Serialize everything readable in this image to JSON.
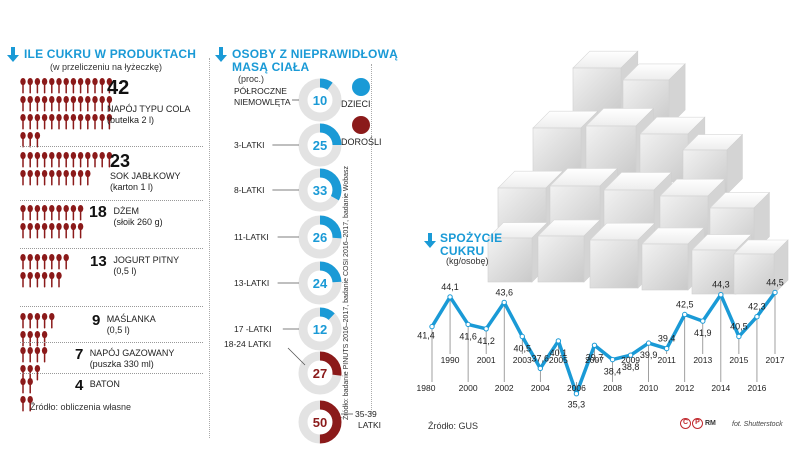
{
  "left": {
    "title": "ILE CUKRU W PRODUKTACH",
    "subtitle": "(w przeliczeniu na łyżeczkę)",
    "items": [
      {
        "value": "42",
        "label1": "NAPÓJ TYPU COLA",
        "label2": "(butelka 2 l)",
        "count": 42
      },
      {
        "value": "23",
        "label1": "SOK JABŁKOWY",
        "label2": "(karton 1 l)",
        "count": 23
      },
      {
        "value": "18",
        "label1": "DŻEM",
        "label2": "(słoik 260 g)",
        "count": 18
      },
      {
        "value": "13",
        "label1": "JOGURT PITNY",
        "label2": "(0,5 l)",
        "count": 13
      },
      {
        "value": "9",
        "label1": "MAŚLANKA",
        "label2": "(0,5 l)",
        "count": 9
      },
      {
        "value": "7",
        "label1": "NAPÓJ GAZOWANY",
        "label2": "(puszka 330 ml)",
        "count": 7
      },
      {
        "value": "4",
        "label1": "BATON",
        "label2": "",
        "count": 4
      }
    ],
    "source": "Źródło: obliczenia własne",
    "icon": "teaspoon-icon",
    "icon_color": "#8b1a1a"
  },
  "middle": {
    "title_line1": "OSOBY Z NIEPRAWIDŁOWĄ",
    "title_line2": "MASĄ CIAŁA",
    "subtitle": "(proc.)",
    "legend": [
      {
        "label": "DZIECI",
        "color": "#1a9ad6"
      },
      {
        "label": "DOROŚLI",
        "color": "#8b1a1a"
      }
    ],
    "rows": [
      {
        "label": "PÓŁROCZNE NIEMOWLĘTA",
        "label1": "PÓŁROCZNE",
        "label2": "NIEMOWLĘTA",
        "value": 10,
        "text": "10",
        "group": "children"
      },
      {
        "label1": "3-LATKI",
        "label2": "",
        "value": 25,
        "text": "25",
        "group": "children"
      },
      {
        "label1": "8-LATKI",
        "label2": "",
        "value": 33,
        "text": "33",
        "group": "children"
      },
      {
        "label1": "11-LATKI",
        "label2": "",
        "value": 26,
        "text": "26",
        "group": "children"
      },
      {
        "label1": "13-LATKI",
        "label2": "",
        "value": 24,
        "text": "24",
        "group": "children"
      },
      {
        "label1": "17 -LATKI",
        "label2": "",
        "value": 12,
        "text": "12",
        "group": "children"
      },
      {
        "label1": "18-24 LATKI",
        "label2": "",
        "value": 27,
        "text": "27",
        "group": "adults"
      },
      {
        "label1": "35-39",
        "label2": "LATKI",
        "value": 50,
        "text": "50",
        "group": "adults"
      }
    ],
    "source": "Źródło: badanie PINUTS 2016–2017, badanie COSI 2016–2017, badanie Wobasz"
  },
  "chart_data": {
    "type": "line",
    "title": "SPOŻYCIE CUKRU",
    "subtitle": "(kg/osobę)",
    "x": [
      1980,
      1990,
      2000,
      2001,
      2002,
      2003,
      2004,
      2005,
      2006,
      2007,
      2008,
      2009,
      2010,
      2011,
      2012,
      2013,
      2014,
      2015,
      2016,
      2017
    ],
    "x_labels": [
      "1980",
      "1990",
      "2000",
      "2001",
      "2002",
      "2003",
      "2004",
      "2005",
      "2006",
      "2007",
      "2008",
      "2009",
      "2010",
      "2011",
      "2012",
      "2013",
      "2014",
      "2015",
      "2016",
      "2017"
    ],
    "values": [
      41.4,
      44.1,
      41.6,
      41.2,
      43.6,
      40.5,
      37.6,
      40.1,
      35.3,
      39.7,
      38.4,
      38.8,
      39.9,
      39.4,
      42.5,
      41.9,
      44.3,
      40.5,
      42.3,
      44.5
    ],
    "value_labels": [
      "41,4",
      "44,1",
      "41,6",
      "41,2",
      "43,6",
      "40,5",
      "37,6",
      "40,1",
      "35,3",
      "39,7",
      "38,4",
      "38,8",
      "39,9",
      "39,4",
      "42,5",
      "41,9",
      "44,3",
      "40,5",
      "42,3",
      "44,5"
    ],
    "ylim": [
      34,
      46
    ],
    "color": "#1a9ad6",
    "source": "Źródło: GUS"
  },
  "credits": {
    "agency": "RM",
    "photo": "fot. Shutterstock"
  }
}
